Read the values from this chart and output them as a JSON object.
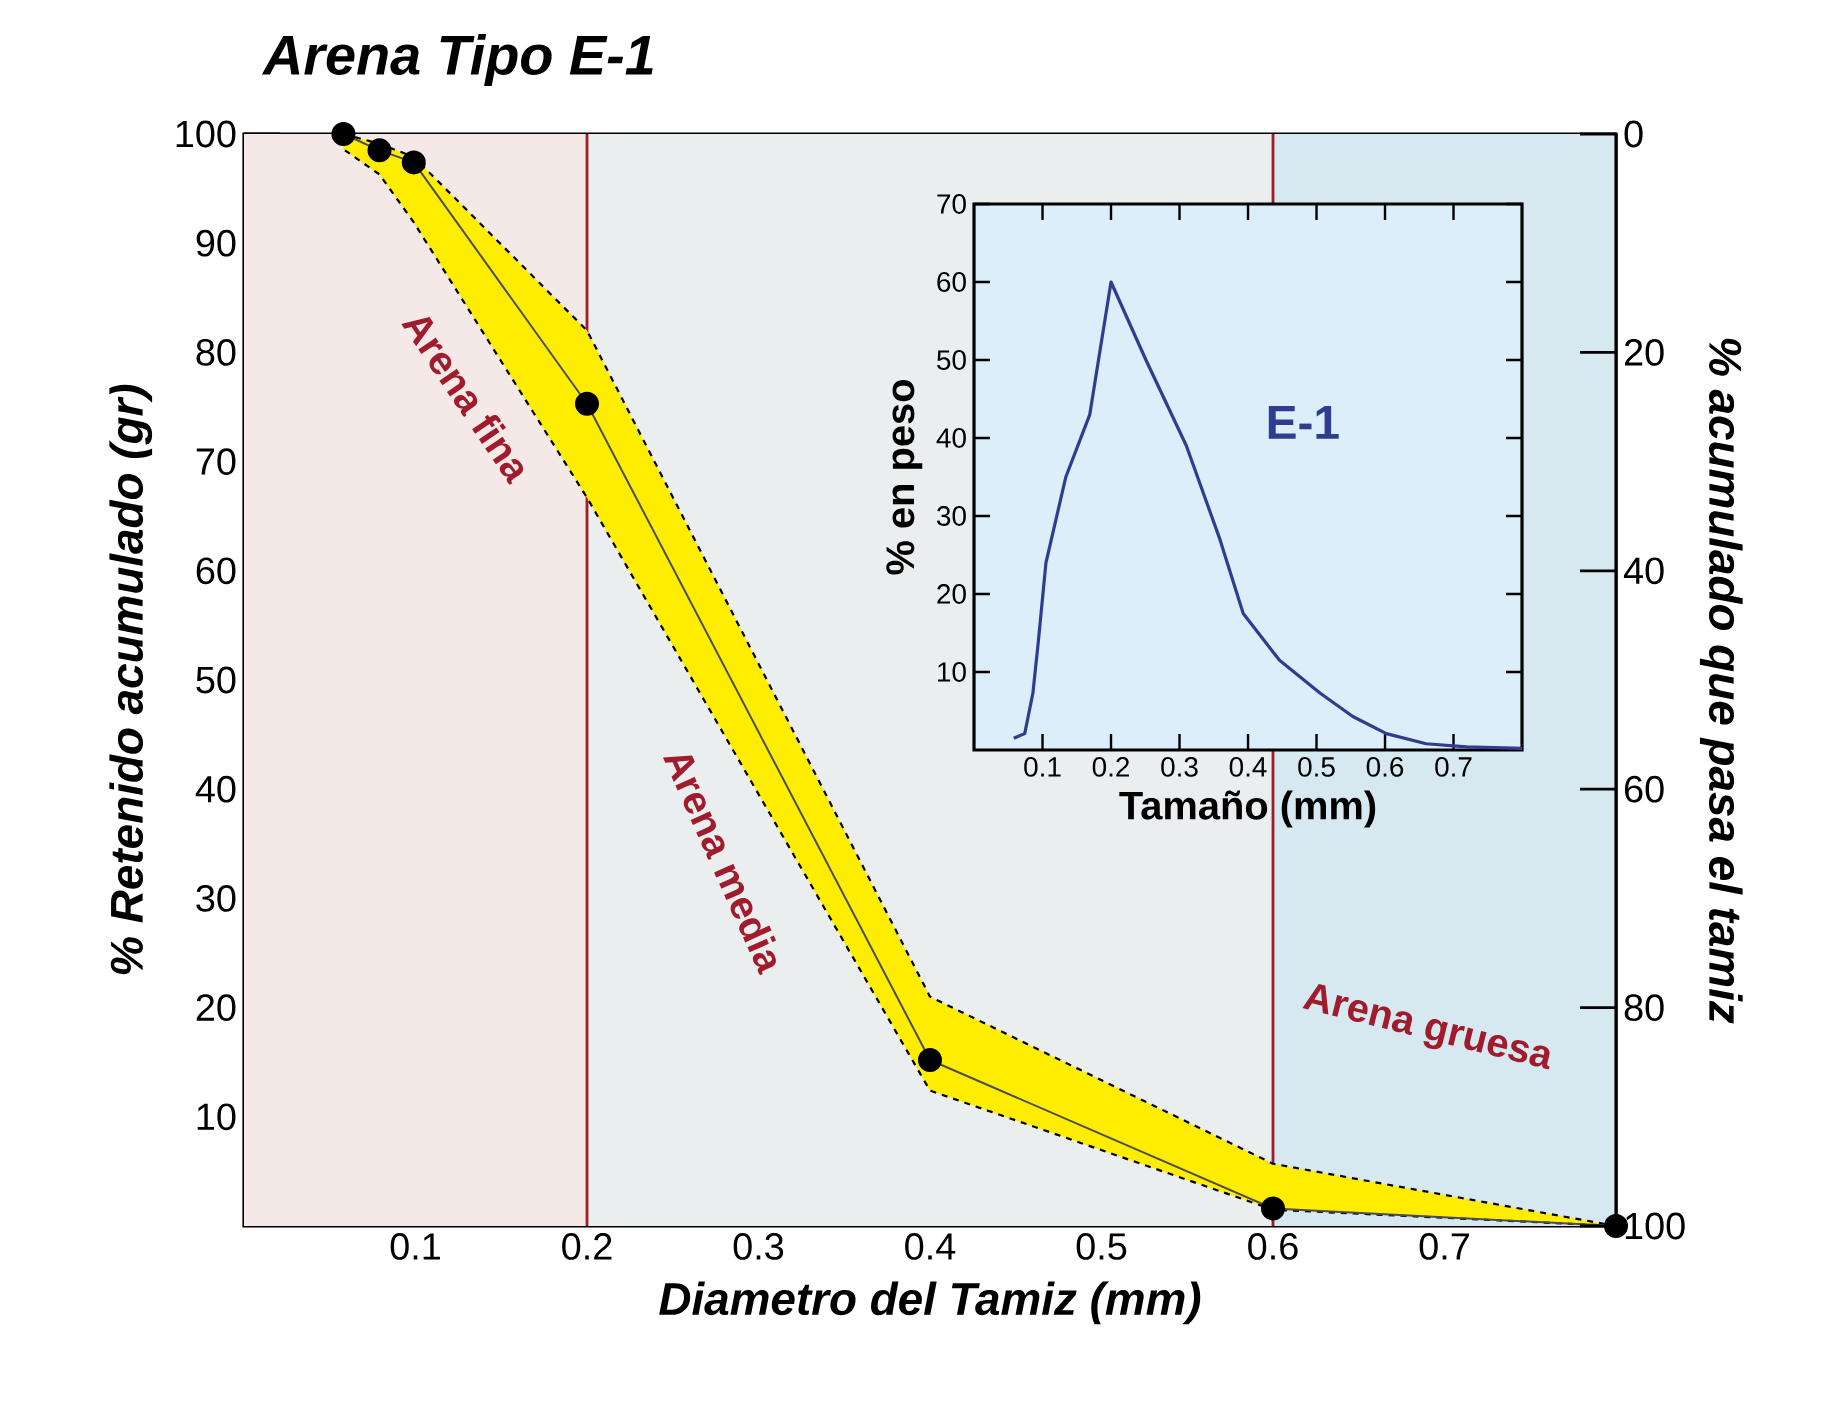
{
  "chart_data": [
    {
      "type": "line",
      "title": "Arena Tipo E-1",
      "xlabel": "Diametro del Tamiz (mm)",
      "ylabel": "% Retenido acumulado (gr)",
      "y2label": "% acumulado que pasa el tamiz",
      "xlim": [
        0,
        0.8
      ],
      "ylim": [
        0,
        100
      ],
      "y2lim": [
        100,
        0
      ],
      "xticks": [
        0.1,
        0.2,
        0.3,
        0.4,
        0.5,
        0.6,
        0.7
      ],
      "yticks": [
        10,
        20,
        30,
        40,
        50,
        60,
        70,
        80,
        90,
        100
      ],
      "y2ticks": [
        0,
        20,
        40,
        60,
        80,
        100
      ],
      "bands": [
        {
          "axis": "x",
          "from": 0,
          "to": 0.2,
          "label": "Arena fina",
          "color": "#f4e9e6"
        },
        {
          "axis": "x",
          "from": 0.2,
          "to": 0.6,
          "label": "Arena media",
          "color": "#eaeeef"
        },
        {
          "axis": "x",
          "from": 0.6,
          "to": 0.8,
          "label": "Arena gruesa",
          "color": "#d6e9f1"
        }
      ],
      "ref_lines": [
        {
          "axis": "x",
          "value": 0.2,
          "color": "#a01c2c"
        },
        {
          "axis": "x",
          "value": 0.6,
          "color": "#a01c2c"
        }
      ],
      "series": [
        {
          "type": "line",
          "color": "#4d4d4d",
          "marker": "circle",
          "x": [
            0.058,
            0.079,
            0.099,
            0.2,
            0.4,
            0.6,
            0.8
          ],
          "values": [
            100,
            98.5,
            97.4,
            75.3,
            15.2,
            1.6,
            0
          ],
          "upper": [
            100,
            99.1,
            97.9,
            82,
            21,
            5.7,
            0
          ],
          "lower": [
            98.6,
            96.3,
            91.9,
            66.7,
            12.4,
            1.5,
            0
          ]
        }
      ]
    },
    {
      "type": "line",
      "xlabel": "Tamaño (mm)",
      "ylabel": "% en peso",
      "xlim": [
        0,
        0.8
      ],
      "ylim": [
        0,
        70
      ],
      "xticks": [
        0.1,
        0.2,
        0.3,
        0.4,
        0.5,
        0.6,
        0.7
      ],
      "yticks": [
        10,
        20,
        30,
        40,
        50,
        60,
        70
      ],
      "series": [
        {
          "name": "E-1",
          "color": "#2e3d8f",
          "x": [
            0.058,
            0.074,
            0.086,
            0.094,
            0.105,
            0.134,
            0.169,
            0.2,
            0.251,
            0.31,
            0.359,
            0.393,
            0.446,
            0.505,
            0.553,
            0.602,
            0.66,
            0.719,
            0.8
          ],
          "values": [
            1.5,
            2.1,
            7.3,
            14,
            24,
            35,
            43,
            60,
            50,
            39,
            27,
            17.5,
            11.5,
            7.3,
            4.3,
            2.1,
            0.8,
            0.4,
            0.2
          ]
        }
      ]
    }
  ]
}
